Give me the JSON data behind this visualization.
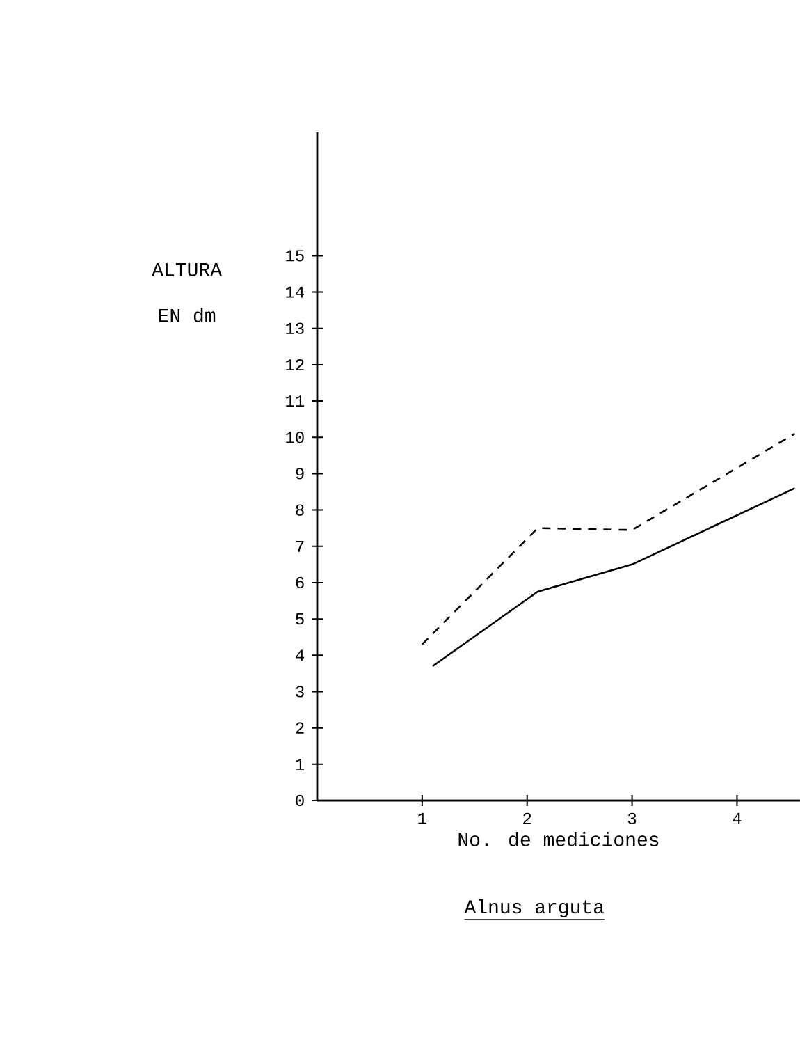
{
  "chart_data": {
    "type": "line",
    "title": "Alnus arguta",
    "xlabel": "No. de mediciones",
    "ylabel": "ALTURA EN dm",
    "xlim": [
      0,
      4.6
    ],
    "ylim": [
      0,
      18.4
    ],
    "xticks": [
      1,
      2,
      3,
      4
    ],
    "yticks": [
      0,
      1,
      2,
      3,
      4,
      5,
      6,
      7,
      8,
      9,
      10,
      11,
      12,
      13,
      14,
      15
    ],
    "series": [
      {
        "color": "#000000",
        "line_style": "dashed",
        "x": [
          1.0,
          2.1,
          3.0,
          4.55
        ],
        "values": [
          4.3,
          7.5,
          7.45,
          10.1
        ]
      },
      {
        "color": "#000000",
        "line_style": "solid",
        "x": [
          1.1,
          2.1,
          3.0,
          4.55
        ],
        "values": [
          3.7,
          5.75,
          6.5,
          8.6
        ]
      }
    ]
  }
}
